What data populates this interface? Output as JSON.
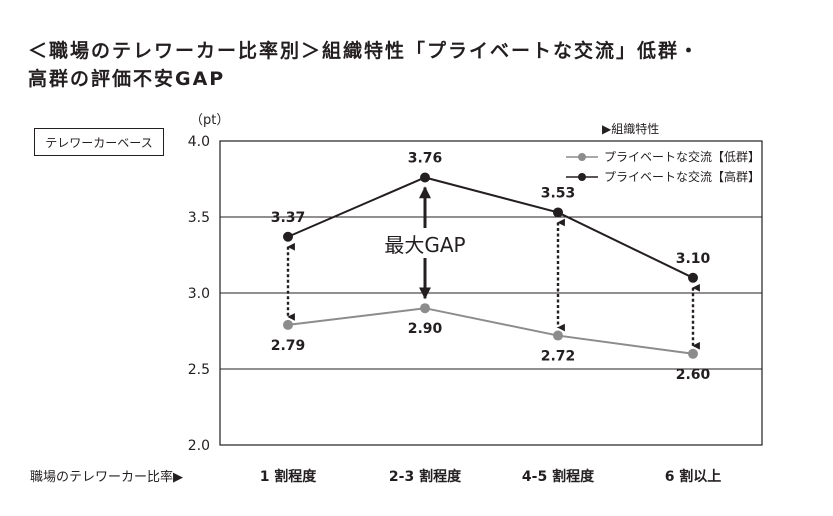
{
  "title": {
    "line1": "＜職場のテレワーカー比率別＞組織特性「プライベートな交流」低群・",
    "line2": "高群の評価不安GAP"
  },
  "badge": "テレワーカーベース",
  "chart_data": {
    "type": "line",
    "categories": [
      "1 割程度",
      "2-3 割程度",
      "4-5 割程度",
      "6 割以上"
    ],
    "series": [
      {
        "name": "プライベートな交流【低群】",
        "values": [
          2.79,
          2.9,
          2.72,
          2.6
        ],
        "color": "#8c8c8c"
      },
      {
        "name": "プライベートな交流【高群】",
        "values": [
          3.37,
          3.76,
          3.53,
          3.1
        ],
        "color": "#231f20"
      }
    ],
    "data_labels_low": [
      "2.79",
      "2.90",
      "2.72",
      "2.60"
    ],
    "data_labels_high": [
      "3.37",
      "3.76",
      "3.53",
      "3.10"
    ],
    "ylim": [
      2.0,
      4.0
    ],
    "yticks": [
      2.0,
      2.5,
      3.0,
      3.5,
      4.0
    ],
    "ytick_labels": [
      "2.0",
      "2.5",
      "3.0",
      "3.5",
      "4.0"
    ],
    "yunit": "（pt）",
    "xlabel": "職場のテレワーカー比率▶",
    "legend_title": "▶組織特性",
    "legend_placement": "top-right",
    "annotation": "最大GAP",
    "grid": true
  }
}
